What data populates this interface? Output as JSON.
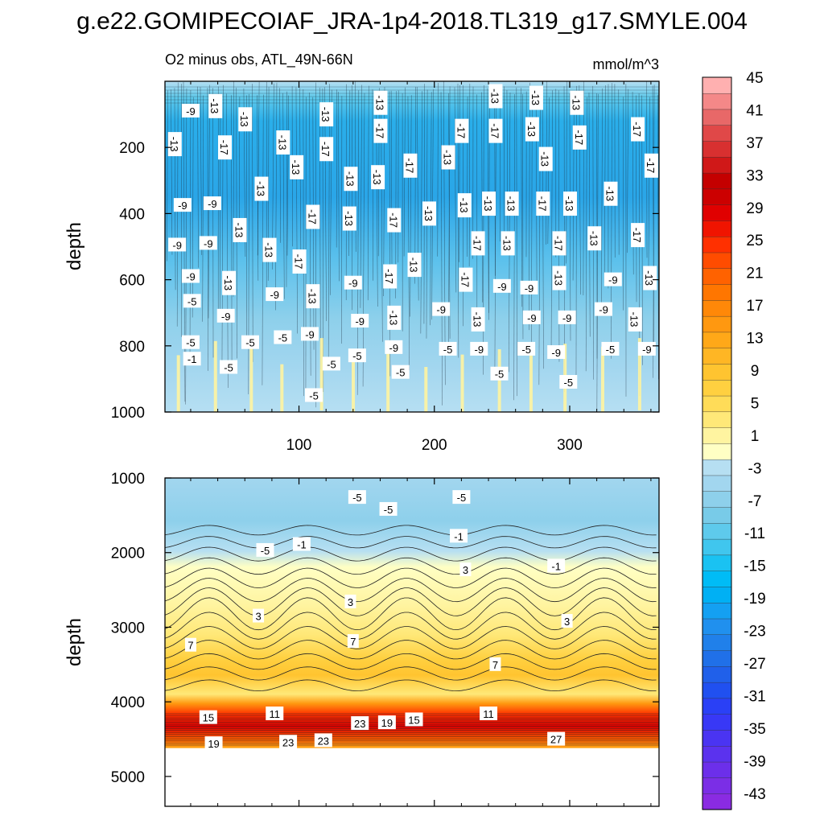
{
  "title": "g.e22.GOMIPECOIAF_JRA-1p4-2018.TL319_g17.SMYLE.004",
  "chart_data": {
    "type": "heatmap",
    "subtitle_left": "O2 minus obs, ATL_49N-66N",
    "subtitle_right": "mmol/m^3",
    "x_range": [
      1,
      366
    ],
    "x_ticks": [
      100,
      200,
      300
    ],
    "x_tick_labels": [
      "100",
      "200",
      "300"
    ],
    "panels": [
      {
        "name": "upper",
        "ylabel": "depth",
        "y_range": [
          0,
          1000
        ],
        "y_ticks": [
          200,
          400,
          600,
          800,
          1000
        ],
        "y_tick_labels": [
          "200",
          "400",
          "600",
          "800",
          "1000"
        ],
        "contour_labels": [
          {
            "x": 20,
            "y": 90,
            "text": "-9"
          },
          {
            "x": 38,
            "y": 75,
            "text": "-13"
          },
          {
            "x": 60,
            "y": 115,
            "text": "-13"
          },
          {
            "x": 120,
            "y": 100,
            "text": "-13"
          },
          {
            "x": 160,
            "y": 65,
            "text": "-13"
          },
          {
            "x": 245,
            "y": 45,
            "text": "-13"
          },
          {
            "x": 275,
            "y": 50,
            "text": "-13"
          },
          {
            "x": 305,
            "y": 65,
            "text": "-13"
          },
          {
            "x": 8,
            "y": 190,
            "text": "-13"
          },
          {
            "x": 45,
            "y": 200,
            "text": "-17"
          },
          {
            "x": 88,
            "y": 185,
            "text": "-13"
          },
          {
            "x": 120,
            "y": 205,
            "text": "-17"
          },
          {
            "x": 160,
            "y": 150,
            "text": "-17"
          },
          {
            "x": 220,
            "y": 150,
            "text": "-17"
          },
          {
            "x": 245,
            "y": 150,
            "text": "-17"
          },
          {
            "x": 272,
            "y": 145,
            "text": "-13"
          },
          {
            "x": 307,
            "y": 170,
            "text": "-17"
          },
          {
            "x": 350,
            "y": 145,
            "text": "-17"
          },
          {
            "x": 360,
            "y": 255,
            "text": "-17"
          },
          {
            "x": 98,
            "y": 260,
            "text": "-13"
          },
          {
            "x": 138,
            "y": 295,
            "text": "-13"
          },
          {
            "x": 158,
            "y": 290,
            "text": "-13"
          },
          {
            "x": 182,
            "y": 255,
            "text": "-17"
          },
          {
            "x": 210,
            "y": 230,
            "text": "-13"
          },
          {
            "x": 282,
            "y": 235,
            "text": "-13"
          },
          {
            "x": 72,
            "y": 325,
            "text": "-13"
          },
          {
            "x": 14,
            "y": 375,
            "text": "-9"
          },
          {
            "x": 36,
            "y": 370,
            "text": "-9"
          },
          {
            "x": 110,
            "y": 410,
            "text": "-17"
          },
          {
            "x": 137,
            "y": 415,
            "text": "-13"
          },
          {
            "x": 170,
            "y": 420,
            "text": "-17"
          },
          {
            "x": 196,
            "y": 400,
            "text": "-13"
          },
          {
            "x": 222,
            "y": 375,
            "text": "-13"
          },
          {
            "x": 240,
            "y": 370,
            "text": "-13"
          },
          {
            "x": 257,
            "y": 370,
            "text": "-13"
          },
          {
            "x": 280,
            "y": 370,
            "text": "-17"
          },
          {
            "x": 300,
            "y": 370,
            "text": "-13"
          },
          {
            "x": 330,
            "y": 340,
            "text": "-13"
          },
          {
            "x": 10,
            "y": 495,
            "text": "-9"
          },
          {
            "x": 33,
            "y": 490,
            "text": "-9"
          },
          {
            "x": 56,
            "y": 450,
            "text": "-13"
          },
          {
            "x": 78,
            "y": 510,
            "text": "-13"
          },
          {
            "x": 100,
            "y": 545,
            "text": "-17"
          },
          {
            "x": 232,
            "y": 490,
            "text": "-17"
          },
          {
            "x": 254,
            "y": 490,
            "text": "-13"
          },
          {
            "x": 292,
            "y": 490,
            "text": "-17"
          },
          {
            "x": 318,
            "y": 475,
            "text": "-13"
          },
          {
            "x": 350,
            "y": 465,
            "text": "-17"
          },
          {
            "x": 20,
            "y": 590,
            "text": "-9"
          },
          {
            "x": 48,
            "y": 610,
            "text": "-13"
          },
          {
            "x": 140,
            "y": 610,
            "text": "-9"
          },
          {
            "x": 167,
            "y": 590,
            "text": "-17"
          },
          {
            "x": 185,
            "y": 555,
            "text": "-13"
          },
          {
            "x": 223,
            "y": 600,
            "text": "-17"
          },
          {
            "x": 250,
            "y": 620,
            "text": "-9"
          },
          {
            "x": 270,
            "y": 625,
            "text": "-9"
          },
          {
            "x": 292,
            "y": 595,
            "text": "-13"
          },
          {
            "x": 332,
            "y": 600,
            "text": "-9"
          },
          {
            "x": 359,
            "y": 595,
            "text": "-13"
          },
          {
            "x": 21,
            "y": 665,
            "text": "-5"
          },
          {
            "x": 46,
            "y": 710,
            "text": "-9"
          },
          {
            "x": 82,
            "y": 645,
            "text": "-9"
          },
          {
            "x": 110,
            "y": 650,
            "text": "-13"
          },
          {
            "x": 145,
            "y": 725,
            "text": "-9"
          },
          {
            "x": 170,
            "y": 715,
            "text": "-13"
          },
          {
            "x": 205,
            "y": 690,
            "text": "-9"
          },
          {
            "x": 232,
            "y": 720,
            "text": "-13"
          },
          {
            "x": 272,
            "y": 715,
            "text": "-9"
          },
          {
            "x": 298,
            "y": 715,
            "text": "-9"
          },
          {
            "x": 325,
            "y": 690,
            "text": "-9"
          },
          {
            "x": 348,
            "y": 720,
            "text": "-13"
          },
          {
            "x": 20,
            "y": 790,
            "text": "-5"
          },
          {
            "x": 64,
            "y": 790,
            "text": "-5"
          },
          {
            "x": 88,
            "y": 775,
            "text": "-5"
          },
          {
            "x": 108,
            "y": 765,
            "text": "-9"
          },
          {
            "x": 143,
            "y": 830,
            "text": "-5"
          },
          {
            "x": 170,
            "y": 805,
            "text": "-9"
          },
          {
            "x": 210,
            "y": 810,
            "text": "-5"
          },
          {
            "x": 233,
            "y": 810,
            "text": "-9"
          },
          {
            "x": 268,
            "y": 810,
            "text": "-5"
          },
          {
            "x": 290,
            "y": 820,
            "text": "-9"
          },
          {
            "x": 330,
            "y": 810,
            "text": "-5"
          },
          {
            "x": 357,
            "y": 810,
            "text": "-9"
          },
          {
            "x": 21,
            "y": 840,
            "text": "-1"
          },
          {
            "x": 48,
            "y": 865,
            "text": "-5"
          },
          {
            "x": 124,
            "y": 855,
            "text": "-5"
          },
          {
            "x": 175,
            "y": 880,
            "text": "-5"
          },
          {
            "x": 248,
            "y": 885,
            "text": "-5"
          },
          {
            "x": 299,
            "y": 910,
            "text": "-5"
          },
          {
            "x": 111,
            "y": 950,
            "text": "-5"
          }
        ]
      },
      {
        "name": "lower",
        "ylabel": "depth",
        "y_range": [
          1000,
          5400
        ],
        "y_ticks": [
          1000,
          2000,
          3000,
          4000,
          5000
        ],
        "y_tick_labels": [
          "1000",
          "2000",
          "3000",
          "4000",
          "5000"
        ],
        "data_max_depth": 4620,
        "contour_labels": [
          {
            "x": 143,
            "y": 1260,
            "text": "-5"
          },
          {
            "x": 166,
            "y": 1420,
            "text": "-5"
          },
          {
            "x": 220,
            "y": 1260,
            "text": "-5"
          },
          {
            "x": 75,
            "y": 1970,
            "text": "-5"
          },
          {
            "x": 102,
            "y": 1890,
            "text": "-1"
          },
          {
            "x": 218,
            "y": 1780,
            "text": "-1"
          },
          {
            "x": 290,
            "y": 2180,
            "text": "-1"
          },
          {
            "x": 223,
            "y": 2230,
            "text": "3"
          },
          {
            "x": 138,
            "y": 2660,
            "text": "3"
          },
          {
            "x": 70,
            "y": 2850,
            "text": "3"
          },
          {
            "x": 298,
            "y": 2920,
            "text": "3"
          },
          {
            "x": 20,
            "y": 3240,
            "text": "7"
          },
          {
            "x": 140,
            "y": 3190,
            "text": "7"
          },
          {
            "x": 245,
            "y": 3500,
            "text": "7"
          },
          {
            "x": 33,
            "y": 4210,
            "text": "15"
          },
          {
            "x": 82,
            "y": 4160,
            "text": "11"
          },
          {
            "x": 145,
            "y": 4290,
            "text": "23"
          },
          {
            "x": 165,
            "y": 4280,
            "text": "19"
          },
          {
            "x": 185,
            "y": 4240,
            "text": "15"
          },
          {
            "x": 240,
            "y": 4160,
            "text": "11"
          },
          {
            "x": 290,
            "y": 4500,
            "text": "27"
          },
          {
            "x": 37,
            "y": 4560,
            "text": "19"
          },
          {
            "x": 92,
            "y": 4540,
            "text": "23"
          },
          {
            "x": 118,
            "y": 4520,
            "text": "23"
          }
        ]
      }
    ],
    "colorbar": {
      "levels": [
        -45,
        -43,
        -41,
        -39,
        -37,
        -35,
        -33,
        -31,
        -29,
        -27,
        -25,
        -23,
        -21,
        -19,
        -17,
        -15,
        -13,
        -11,
        -9,
        -7,
        -5,
        -3,
        -1,
        1,
        3,
        5,
        7,
        9,
        11,
        13,
        15,
        17,
        19,
        21,
        23,
        25,
        27,
        29,
        31,
        33,
        35,
        37,
        39,
        41,
        43,
        45
      ],
      "tick_labels": [
        "-43",
        "-39",
        "-35",
        "-31",
        "-27",
        "-23",
        "-19",
        "-15",
        "-11",
        "-7",
        "-3",
        "1",
        "5",
        "9",
        "13",
        "17",
        "21",
        "25",
        "29",
        "33",
        "37",
        "41",
        "45"
      ],
      "colors": [
        "#8a2be2",
        "#7b2ee6",
        "#6c2fea",
        "#5b32ee",
        "#4a34f2",
        "#3838f6",
        "#2a40f6",
        "#2050f0",
        "#2060ea",
        "#2070e8",
        "#2080ea",
        "#2090ee",
        "#14a0f2",
        "#00b0f4",
        "#00bcf6",
        "#1ac2f2",
        "#40c6ee",
        "#5ecaec",
        "#78cbe8",
        "#8ed0eb",
        "#a2d6ef",
        "#b6dff2",
        "#ffffc4",
        "#fff4a0",
        "#ffe878",
        "#ffdc58",
        "#ffd040",
        "#ffc430",
        "#ffb624",
        "#ffa818",
        "#ff9810",
        "#ff8808",
        "#ff7600",
        "#ff6200",
        "#ff4c00",
        "#ff3000",
        "#f01400",
        "#e00000",
        "#cc0000",
        "#c40000",
        "#d01818",
        "#d83030",
        "#e04848",
        "#e86868",
        "#f48888",
        "#ffb0b0"
      ]
    }
  }
}
